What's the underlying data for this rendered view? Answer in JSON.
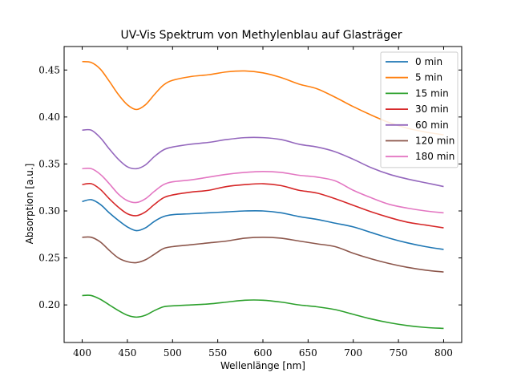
{
  "chart_data": {
    "type": "line",
    "title": "UV-Vis Spektrum von Methylenblau auf Glasträger",
    "xlabel": "Wellenlänge [nm]",
    "ylabel": "Absorption [a.u.]",
    "xlim": [
      380,
      820
    ],
    "ylim": [
      0.16,
      0.475
    ],
    "xticks": [
      400,
      450,
      500,
      550,
      600,
      650,
      700,
      750,
      800
    ],
    "yticks": [
      0.2,
      0.25,
      0.3,
      0.35,
      0.4,
      0.45
    ],
    "ytick_labels": [
      "0.20",
      "0.25",
      "0.30",
      "0.35",
      "0.40",
      "0.45"
    ],
    "legend_position": "top-right",
    "x": [
      400,
      410,
      420,
      430,
      440,
      450,
      460,
      470,
      480,
      490,
      500,
      520,
      540,
      560,
      580,
      600,
      620,
      640,
      660,
      680,
      700,
      720,
      740,
      760,
      780,
      800
    ],
    "series": [
      {
        "name": "0 min",
        "color": "#1f77b4",
        "values": [
          0.31,
          0.312,
          0.307,
          0.298,
          0.29,
          0.283,
          0.279,
          0.282,
          0.289,
          0.294,
          0.296,
          0.297,
          0.298,
          0.299,
          0.3,
          0.3,
          0.298,
          0.294,
          0.291,
          0.287,
          0.283,
          0.277,
          0.271,
          0.266,
          0.262,
          0.259
        ]
      },
      {
        "name": "5 min",
        "color": "#ff7f0e",
        "values": [
          0.459,
          0.458,
          0.451,
          0.438,
          0.424,
          0.413,
          0.408,
          0.413,
          0.424,
          0.434,
          0.439,
          0.443,
          0.445,
          0.448,
          0.449,
          0.447,
          0.442,
          0.435,
          0.43,
          0.421,
          0.411,
          0.402,
          0.394,
          0.388,
          0.384,
          0.381
        ]
      },
      {
        "name": "15 min",
        "color": "#2ca02c",
        "values": [
          0.21,
          0.21,
          0.206,
          0.2,
          0.194,
          0.189,
          0.187,
          0.189,
          0.194,
          0.198,
          0.199,
          0.2,
          0.201,
          0.203,
          0.205,
          0.205,
          0.203,
          0.2,
          0.198,
          0.195,
          0.19,
          0.185,
          0.181,
          0.178,
          0.176,
          0.175
        ]
      },
      {
        "name": "30 min",
        "color": "#d62728",
        "values": [
          0.328,
          0.329,
          0.323,
          0.313,
          0.304,
          0.297,
          0.295,
          0.299,
          0.307,
          0.314,
          0.317,
          0.32,
          0.322,
          0.326,
          0.328,
          0.329,
          0.327,
          0.322,
          0.319,
          0.313,
          0.306,
          0.299,
          0.293,
          0.288,
          0.285,
          0.282
        ]
      },
      {
        "name": "60 min",
        "color": "#9467bd",
        "values": [
          0.386,
          0.386,
          0.378,
          0.366,
          0.355,
          0.347,
          0.345,
          0.349,
          0.358,
          0.365,
          0.368,
          0.371,
          0.373,
          0.376,
          0.378,
          0.378,
          0.376,
          0.371,
          0.368,
          0.363,
          0.355,
          0.346,
          0.339,
          0.334,
          0.33,
          0.326
        ]
      },
      {
        "name": "120 min",
        "color": "#8c564b",
        "values": [
          0.272,
          0.272,
          0.267,
          0.258,
          0.25,
          0.246,
          0.245,
          0.248,
          0.254,
          0.26,
          0.262,
          0.264,
          0.266,
          0.268,
          0.271,
          0.272,
          0.271,
          0.268,
          0.265,
          0.262,
          0.255,
          0.249,
          0.244,
          0.24,
          0.237,
          0.235
        ]
      },
      {
        "name": "180 min",
        "color": "#e377c2",
        "values": [
          0.345,
          0.345,
          0.339,
          0.329,
          0.318,
          0.311,
          0.309,
          0.313,
          0.321,
          0.328,
          0.331,
          0.333,
          0.336,
          0.339,
          0.341,
          0.342,
          0.341,
          0.338,
          0.336,
          0.332,
          0.322,
          0.314,
          0.307,
          0.303,
          0.3,
          0.298
        ]
      }
    ]
  }
}
